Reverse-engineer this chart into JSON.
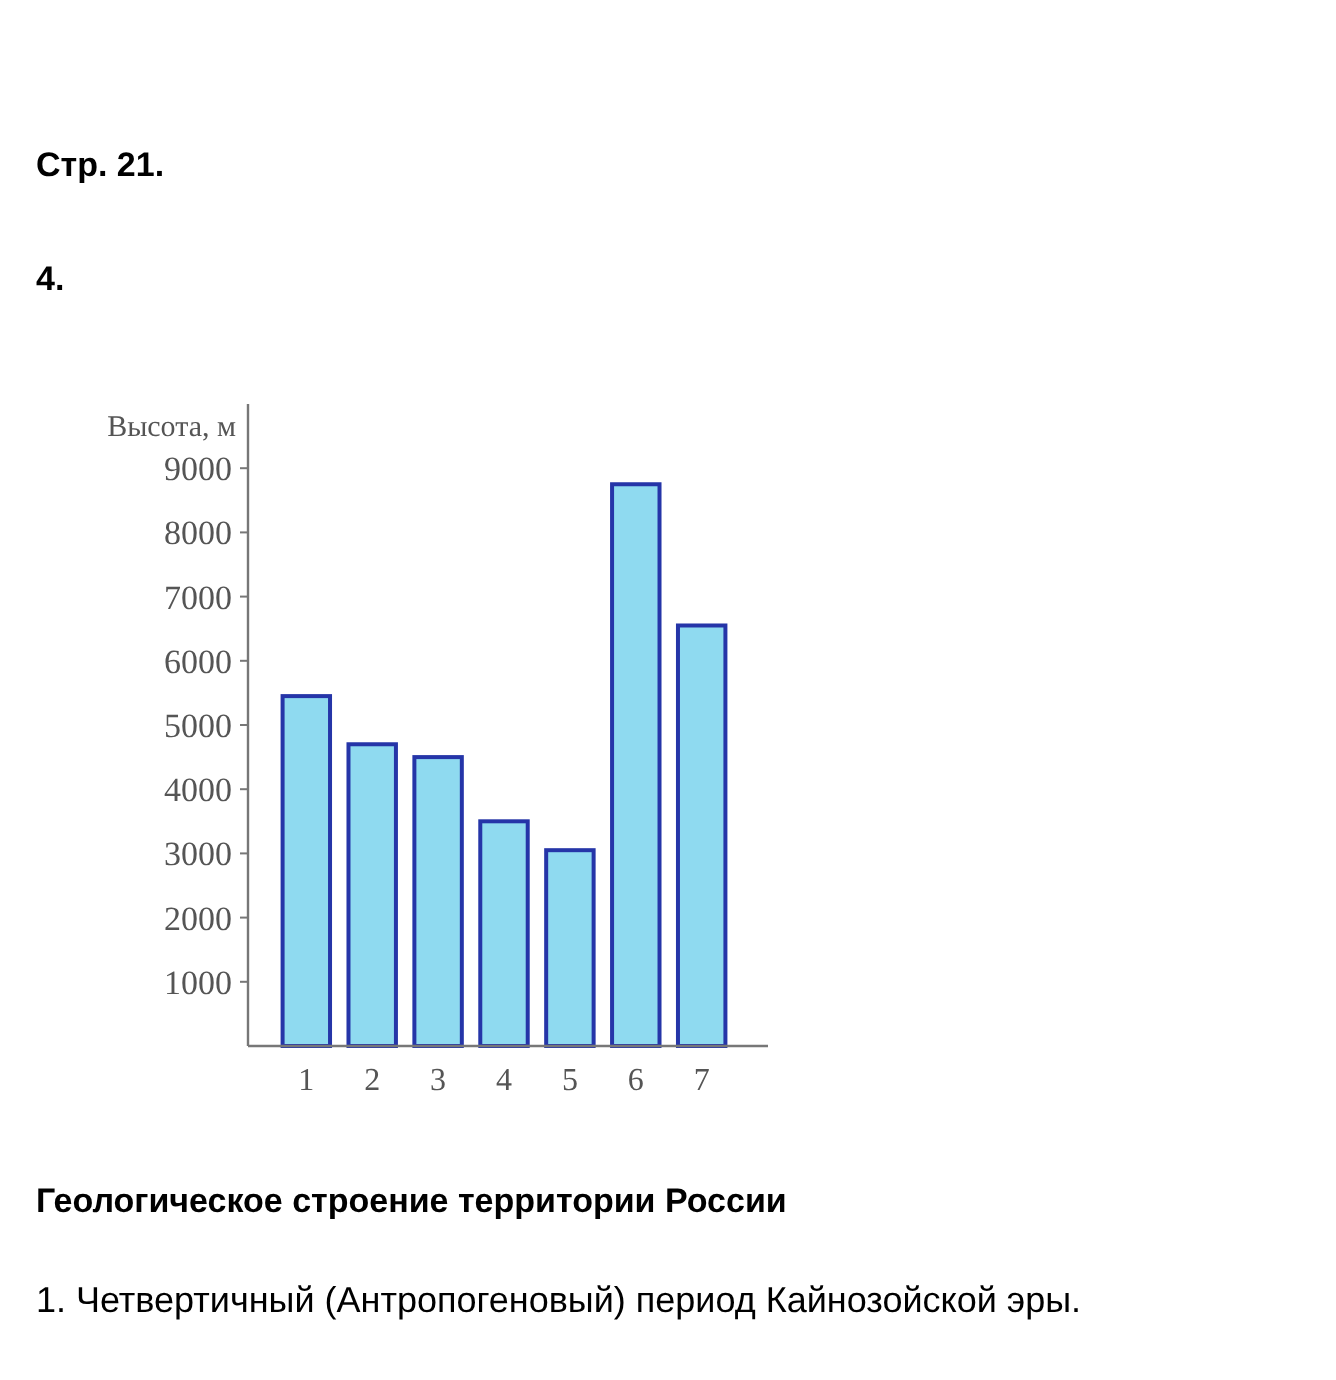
{
  "chart_data": {
    "type": "bar",
    "title": "Стр. 21.",
    "subtitle": "4.",
    "ylabel": "Высота, м",
    "categories": [
      "1",
      "2",
      "3",
      "4",
      "5",
      "6",
      "7"
    ],
    "series": [
      {
        "color": "#8fdaf0",
        "values": [
          5450,
          4700,
          4500,
          3500,
          3050,
          8750,
          6550
        ]
      }
    ],
    "ylim": [
      0,
      10000
    ],
    "yticks": [
      1000,
      2000,
      3000,
      4000,
      5000,
      6000,
      7000,
      8000,
      9000
    ],
    "grid": false,
    "annotations": [
      "Геологическое строение территории России",
      "1. Четвертичный (Антропогеновый) период Кайнозойской эры."
    ]
  }
}
